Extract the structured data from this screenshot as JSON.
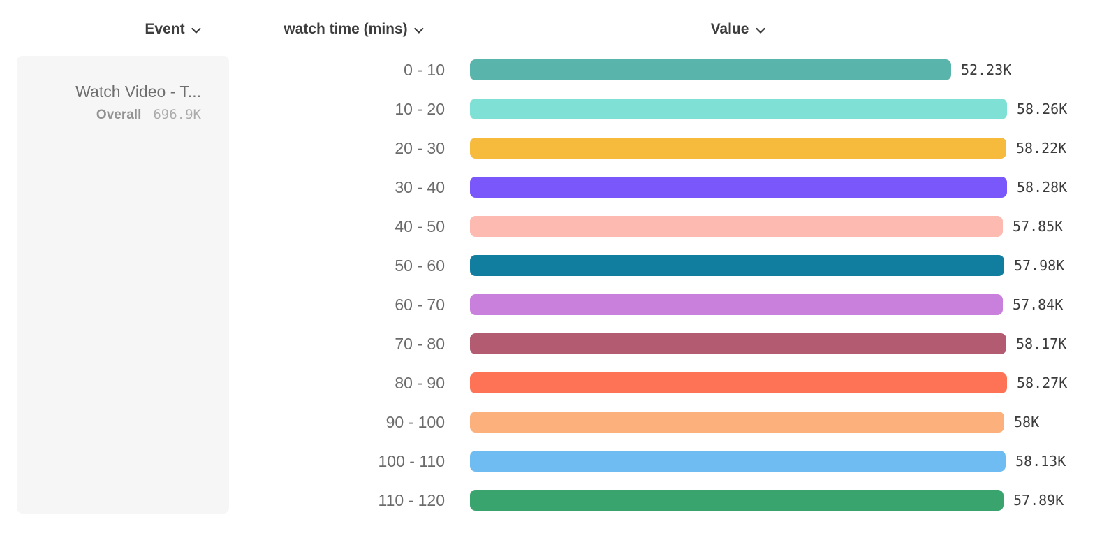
{
  "header": {
    "event": {
      "label": "Event"
    },
    "breakdown": {
      "label": "watch time (mins)"
    },
    "value": {
      "label": "Value"
    }
  },
  "event_card": {
    "name": "Watch Video - T...",
    "overall_label": "Overall",
    "overall_value": "696.9K"
  },
  "chart_data": {
    "type": "bar",
    "orientation": "horizontal",
    "title": "",
    "xlabel": "Value",
    "ylabel": "watch time (mins)",
    "categories": [
      "0 - 10",
      "10 - 20",
      "20 - 30",
      "30 - 40",
      "40 - 50",
      "50 - 60",
      "60 - 70",
      "70 - 80",
      "80 - 90",
      "90 - 100",
      "100 - 110",
      "110 - 120"
    ],
    "values": [
      52.23,
      58.26,
      58.22,
      58.28,
      57.85,
      57.98,
      57.84,
      58.17,
      58.27,
      58.0,
      58.13,
      57.89
    ],
    "value_unit": "K",
    "value_labels": [
      "52.23K",
      "58.26K",
      "58.22K",
      "58.28K",
      "57.85K",
      "57.98K",
      "57.84K",
      "58.17K",
      "58.27K",
      "58K",
      "58.13K",
      "57.89K"
    ],
    "bar_colors": [
      "#59b4ac",
      "#7fe0d5",
      "#f6bb3d",
      "#7957fa",
      "#fdbab0",
      "#117d9f",
      "#c880dc",
      "#b25b71",
      "#fe7355",
      "#fcb17c",
      "#6fbcf3",
      "#3aa46f"
    ],
    "xlim": [
      0,
      58.28
    ],
    "grid": false,
    "legend": "none"
  },
  "icons": {
    "chevron_down": "chevron-down"
  },
  "colors": {
    "header_text": "#3d3d3d",
    "category_text": "#6b6b6b",
    "value_text": "#3b3b3b",
    "card_bg": "#f6f6f6"
  }
}
